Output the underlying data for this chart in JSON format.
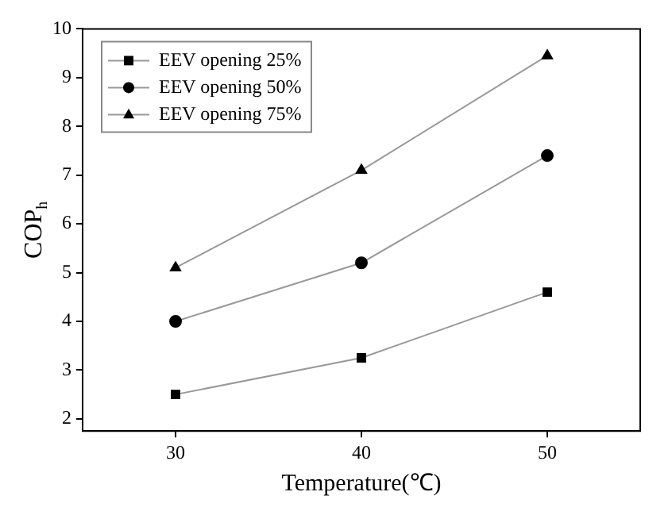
{
  "chart_data": {
    "type": "line",
    "xlabel": "Temperature(℃)",
    "ylabel": "COP$_{h}$",
    "x": [
      30,
      40,
      50
    ],
    "series": [
      {
        "name": "EEV opening 25%",
        "color": "#000000",
        "marker": "square",
        "values": [
          2.5,
          3.25,
          4.6
        ]
      },
      {
        "name": "EEV opening 50%",
        "color": "#000000",
        "marker": "circle",
        "values": [
          4.0,
          5.2,
          7.4
        ]
      },
      {
        "name": "EEV opening 75%",
        "color": "#000000",
        "marker": "triangle",
        "values": [
          5.1,
          7.1,
          9.45
        ]
      }
    ],
    "xlim": [
      25,
      55
    ],
    "xticks": [
      30,
      40,
      50
    ],
    "ylim": [
      1.75,
      10
    ],
    "yticks": [
      2,
      3,
      4,
      5,
      6,
      7,
      8,
      9,
      10
    ],
    "grid": false,
    "legend": "top left",
    "line_style": "solid"
  }
}
